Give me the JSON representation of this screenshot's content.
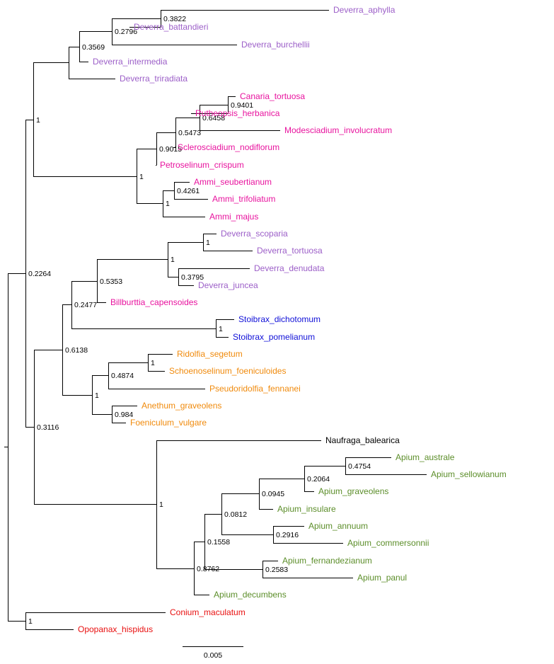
{
  "colors": {
    "purple": "#9c5fc8",
    "magenta": "#e8139e",
    "blue": "#1010d8",
    "orange": "#f08a0c",
    "green": "#5c8e2a",
    "red": "#e81010",
    "black": "#000000"
  },
  "tree": {
    "children": [
      {
        "support": "0.2264",
        "children": [
          {
            "support": "1",
            "children": [
              {
                "children": [
                  {
                    "support": "0.3569",
                    "children": [
                      {
                        "support": "0.2796",
                        "children": [
                          {
                            "support": "0.3822",
                            "children": [
                              {
                                "name": "Deverra_aphylla",
                                "color": "purple"
                              },
                              {
                                "name": "Deverra_battandieri",
                                "color": "purple"
                              }
                            ]
                          },
                          {
                            "name": "Deverra_burchellii",
                            "color": "purple"
                          }
                        ]
                      },
                      {
                        "name": "Deverra_intermedia",
                        "color": "purple"
                      }
                    ]
                  },
                  {
                    "name": "Deverra_triradiata",
                    "color": "purple"
                  }
                ]
              },
              {
                "support": "1",
                "children": [
                  {
                    "support": "0.9015",
                    "children": [
                      {
                        "support": "0.5473",
                        "children": [
                          {
                            "support": "0.6458",
                            "children": [
                              {
                                "support": "0.9401",
                                "children": [
                                  {
                                    "name": "Canaria_tortuosa",
                                    "color": "magenta"
                                  },
                                  {
                                    "name": "Rutheopsis_herbanica",
                                    "color": "magenta"
                                  }
                                ]
                              },
                              {
                                "name": "Modesciadium_involucratum",
                                "color": "magenta"
                              }
                            ]
                          },
                          {
                            "name": "Sclerosciadium_nodiflorum",
                            "color": "magenta"
                          }
                        ]
                      },
                      {
                        "name": "Petroselinum_crispum",
                        "color": "magenta"
                      }
                    ]
                  },
                  {
                    "support": "1",
                    "children": [
                      {
                        "support": "0.4261",
                        "children": [
                          {
                            "name": "Ammi_seubertianum",
                            "color": "magenta"
                          },
                          {
                            "name": "Ammi_trifoliatum",
                            "color": "magenta"
                          }
                        ]
                      },
                      {
                        "name": "Ammi_majus",
                        "color": "magenta"
                      }
                    ]
                  }
                ]
              }
            ]
          },
          {
            "support": "0.3116",
            "children": [
              {
                "children": [
                  {
                    "support": "0.6138",
                    "children": [
                      {
                        "support": "0.2477",
                        "children": [
                          {
                            "support": "0.5353",
                            "children": [
                              {
                                "support": "1",
                                "children": [
                                  {
                                    "support": "1",
                                    "children": [
                                      {
                                        "name": "Deverra_scoparia",
                                        "color": "purple"
                                      },
                                      {
                                        "name": "Deverra_tortuosa",
                                        "color": "purple"
                                      }
                                    ]
                                  },
                                  {
                                    "support": "0.3795",
                                    "children": [
                                      {
                                        "name": "Deverra_denudata",
                                        "color": "purple"
                                      },
                                      {
                                        "name": "Deverra_juncea",
                                        "color": "purple"
                                      }
                                    ]
                                  }
                                ]
                              },
                              {
                                "name": "Billburttia_capensoides",
                                "color": "magenta"
                              }
                            ]
                          },
                          {
                            "support": "1",
                            "children": [
                              {
                                "name": "Stoibrax_dichotomum",
                                "color": "blue"
                              },
                              {
                                "name": "Stoibrax_pomelianum",
                                "color": "blue"
                              }
                            ]
                          }
                        ]
                      },
                      {
                        "support": "1",
                        "children": [
                          {
                            "support": "0.4874",
                            "children": [
                              {
                                "support": "1",
                                "children": [
                                  {
                                    "name": "Ridolfia_segetum",
                                    "color": "orange"
                                  },
                                  {
                                    "name": "Schoenoselinum_foeniculoides",
                                    "color": "orange"
                                  }
                                ]
                              },
                              {
                                "name": "Pseudoridolfia_fennanei",
                                "color": "orange"
                              }
                            ]
                          },
                          {
                            "support": "0.984",
                            "children": [
                              {
                                "name": "Anethum_graveolens",
                                "color": "orange"
                              },
                              {
                                "name": "Foeniculum_vulgare",
                                "color": "orange"
                              }
                            ]
                          }
                        ]
                      }
                    ]
                  }
                ]
              },
              {
                "support": "1",
                "children": [
                  {
                    "name": "Naufraga_balearica",
                    "color": "black"
                  },
                  {
                    "support": "0.8762",
                    "children": [
                      {
                        "support": "0.1558",
                        "children": [
                          {
                            "support": "0.0812",
                            "children": [
                              {
                                "support": "0.0945",
                                "children": [
                                  {
                                    "support": "0.2064",
                                    "children": [
                                      {
                                        "support": "0.4754",
                                        "children": [
                                          {
                                            "name": "Apium_australe",
                                            "color": "green"
                                          },
                                          {
                                            "name": "Apium_sellowianum",
                                            "color": "green"
                                          }
                                        ]
                                      },
                                      {
                                        "name": "Apium_graveolens",
                                        "color": "green"
                                      }
                                    ]
                                  },
                                  {
                                    "name": "Apium_insulare",
                                    "color": "green"
                                  }
                                ]
                              },
                              {
                                "support": "0.2916",
                                "children": [
                                  {
                                    "name": "Apium_annuum",
                                    "color": "green"
                                  },
                                  {
                                    "name": "Apium_commersonnii",
                                    "color": "green"
                                  }
                                ]
                              }
                            ]
                          },
                          {
                            "support": "0.2583",
                            "children": [
                              {
                                "name": "Apium_fernandezianum",
                                "color": "green"
                              },
                              {
                                "name": "Apium_panul",
                                "color": "green"
                              }
                            ]
                          }
                        ]
                      },
                      {
                        "name": "Apium_decumbens",
                        "color": "green"
                      }
                    ]
                  }
                ]
              }
            ]
          }
        ]
      },
      {
        "support": "1",
        "children": [
          {
            "name": "Conium_maculatum",
            "color": "red"
          },
          {
            "name": "Opopanax_hispidus",
            "color": "red"
          }
        ]
      }
    ]
  },
  "scale_bar": {
    "label": "0.005"
  }
}
